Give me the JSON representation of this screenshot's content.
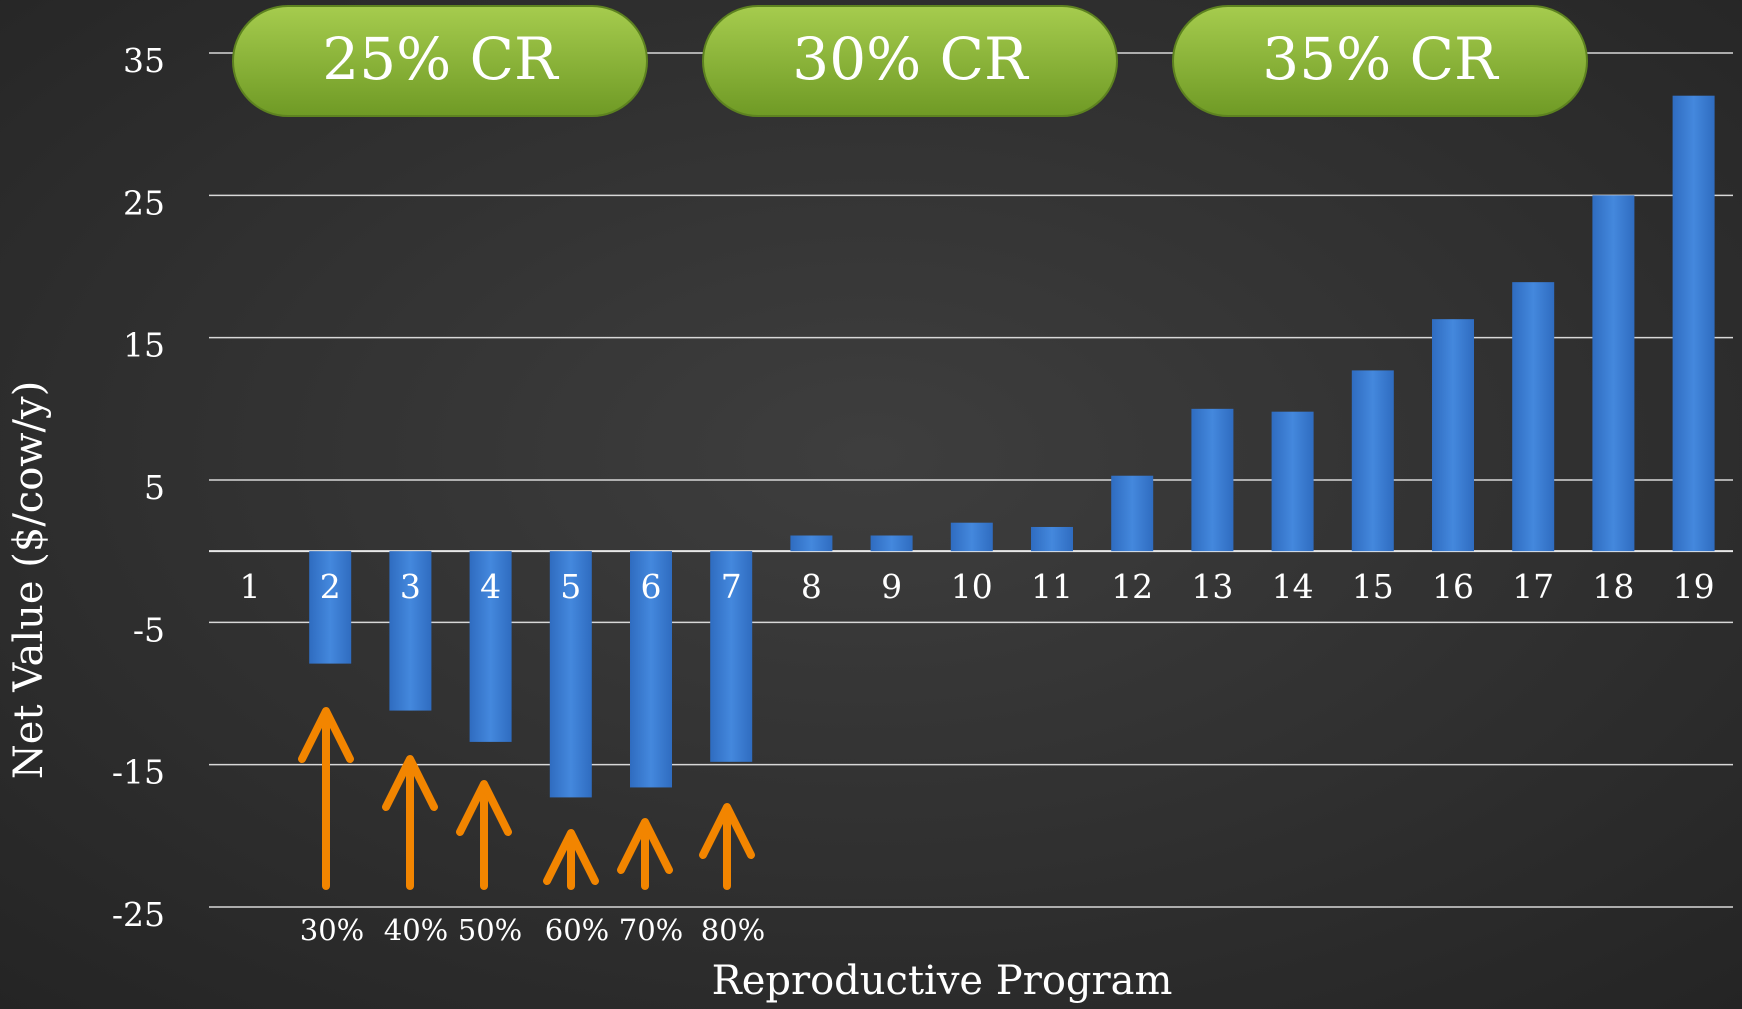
{
  "chart_data": {
    "type": "bar",
    "categories": [
      "1",
      "2",
      "3",
      "4",
      "5",
      "6",
      "7",
      "8",
      "9",
      "10",
      "11",
      "12",
      "13",
      "14",
      "15",
      "16",
      "17",
      "18",
      "19"
    ],
    "values": [
      0,
      -7.9,
      -11.2,
      -13.4,
      -17.3,
      -16.6,
      -14.8,
      1.1,
      1.1,
      2.0,
      1.7,
      5.3,
      10.0,
      9.8,
      12.7,
      16.3,
      18.9,
      25,
      32
    ],
    "color": "#3a7bd0",
    "ylim": [
      -25,
      35
    ],
    "yticks": [
      35,
      25,
      15,
      5,
      -5,
      -15,
      -25
    ],
    "grid": true,
    "y_label": "Net Value ($/cow/y)",
    "x_label": "Reproductive Program",
    "group_labels": [
      "25% CR",
      "30% CR",
      "35% CR"
    ],
    "arrow_labels": [
      "30%",
      "40%",
      "50%",
      "60%",
      "70%",
      "80%"
    ]
  }
}
